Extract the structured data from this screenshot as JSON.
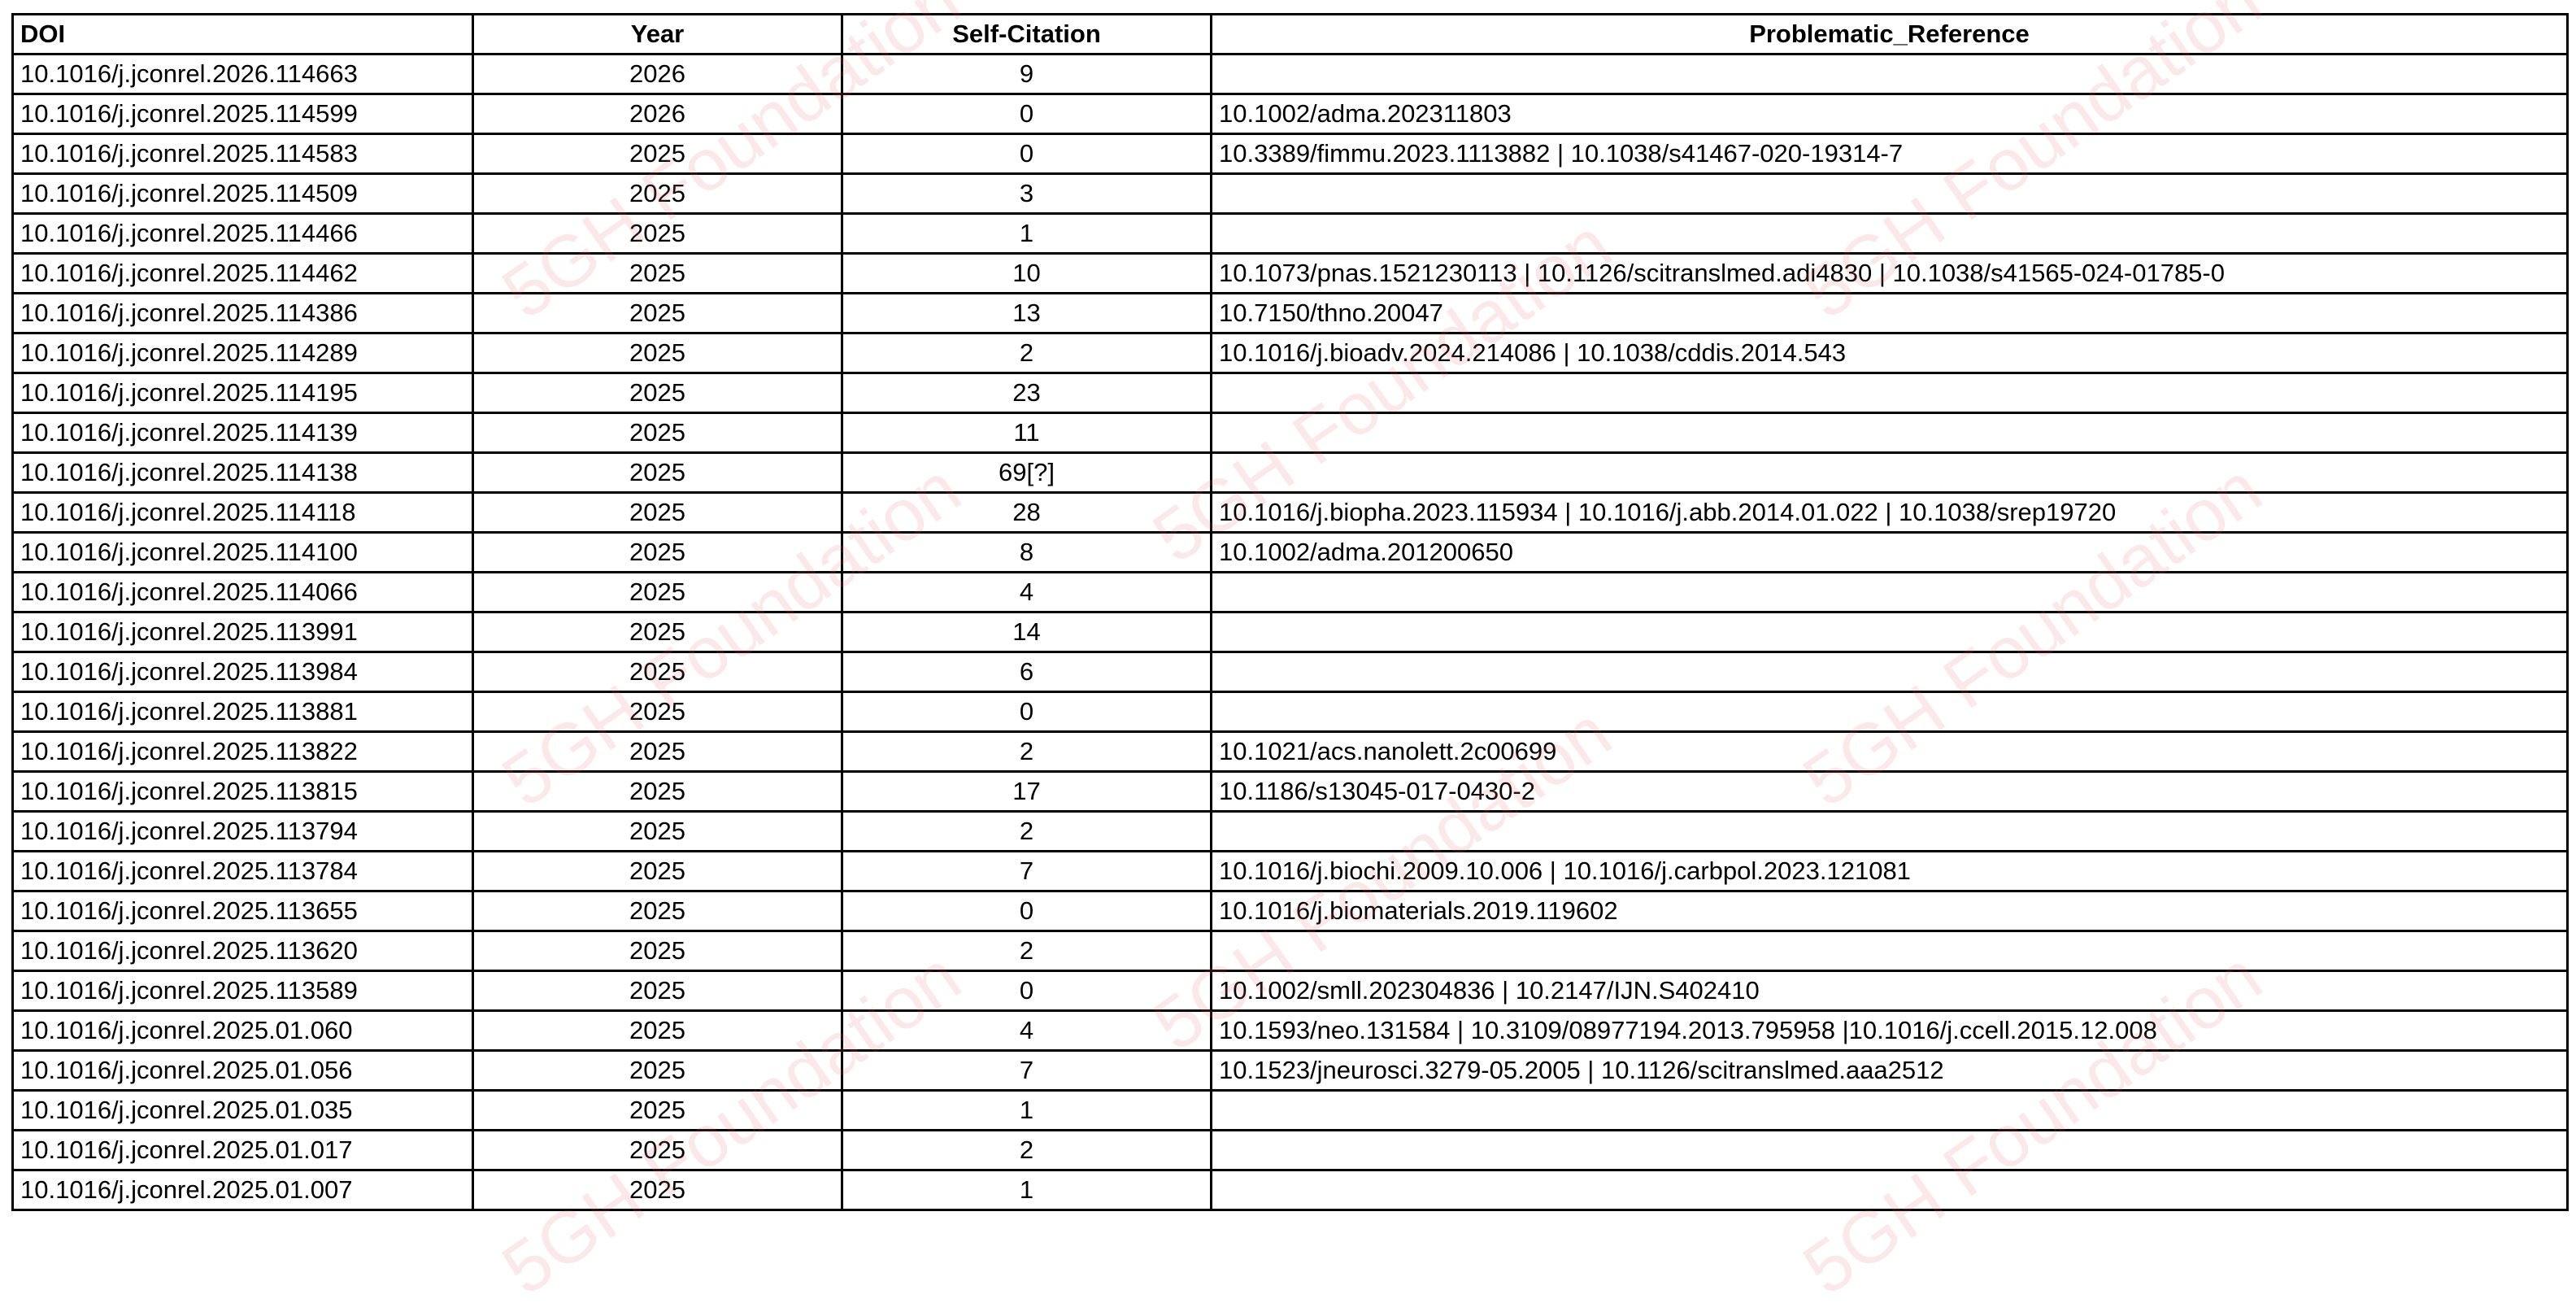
{
  "headers": {
    "doi": "DOI",
    "year": "Year",
    "self_citation": "Self-Citation",
    "problematic_reference": "Problematic_Reference"
  },
  "watermark": "5GH Foundation",
  "rows": [
    {
      "doi": "10.1016/j.jconrel.2026.114663",
      "year": "2026",
      "self_citation": "9",
      "problematic_reference": ""
    },
    {
      "doi": "10.1016/j.jconrel.2025.114599",
      "year": "2026",
      "self_citation": "0",
      "problematic_reference": "10.1002/adma.202311803"
    },
    {
      "doi": "10.1016/j.jconrel.2025.114583",
      "year": "2025",
      "self_citation": "0",
      "problematic_reference": "10.3389/fimmu.2023.1113882 | 10.1038/s41467-020-19314-7"
    },
    {
      "doi": "10.1016/j.jconrel.2025.114509",
      "year": "2025",
      "self_citation": "3",
      "problematic_reference": ""
    },
    {
      "doi": "10.1016/j.jconrel.2025.114466",
      "year": "2025",
      "self_citation": "1",
      "problematic_reference": ""
    },
    {
      "doi": "10.1016/j.jconrel.2025.114462",
      "year": "2025",
      "self_citation": "10",
      "problematic_reference": "10.1073/pnas.1521230113 | 10.1126/scitranslmed.adi4830 | 10.1038/s41565-024-01785-0"
    },
    {
      "doi": "10.1016/j.jconrel.2025.114386",
      "year": "2025",
      "self_citation": "13",
      "problematic_reference": "10.7150/thno.20047"
    },
    {
      "doi": "10.1016/j.jconrel.2025.114289",
      "year": "2025",
      "self_citation": "2",
      "problematic_reference": "10.1016/j.bioadv.2024.214086 | 10.1038/cddis.2014.543"
    },
    {
      "doi": "10.1016/j.jconrel.2025.114195",
      "year": "2025",
      "self_citation": "23",
      "problematic_reference": ""
    },
    {
      "doi": "10.1016/j.jconrel.2025.114139",
      "year": "2025",
      "self_citation": "11",
      "problematic_reference": ""
    },
    {
      "doi": "10.1016/j.jconrel.2025.114138",
      "year": "2025",
      "self_citation": "69[?]",
      "problematic_reference": ""
    },
    {
      "doi": "10.1016/j.jconrel.2025.114118",
      "year": "2025",
      "self_citation": "28",
      "problematic_reference": "10.1016/j.biopha.2023.115934 | 10.1016/j.abb.2014.01.022 | 10.1038/srep19720"
    },
    {
      "doi": "10.1016/j.jconrel.2025.114100",
      "year": "2025",
      "self_citation": "8",
      "problematic_reference": "10.1002/adma.201200650"
    },
    {
      "doi": "10.1016/j.jconrel.2025.114066",
      "year": "2025",
      "self_citation": "4",
      "problematic_reference": ""
    },
    {
      "doi": "10.1016/j.jconrel.2025.113991",
      "year": "2025",
      "self_citation": "14",
      "problematic_reference": ""
    },
    {
      "doi": "10.1016/j.jconrel.2025.113984",
      "year": "2025",
      "self_citation": "6",
      "problematic_reference": ""
    },
    {
      "doi": "10.1016/j.jconrel.2025.113881",
      "year": "2025",
      "self_citation": "0",
      "problematic_reference": ""
    },
    {
      "doi": "10.1016/j.jconrel.2025.113822",
      "year": "2025",
      "self_citation": "2",
      "problematic_reference": "10.1021/acs.nanolett.2c00699"
    },
    {
      "doi": "10.1016/j.jconrel.2025.113815",
      "year": "2025",
      "self_citation": "17",
      "problematic_reference": "10.1186/s13045-017-0430-2"
    },
    {
      "doi": "10.1016/j.jconrel.2025.113794",
      "year": "2025",
      "self_citation": "2",
      "problematic_reference": ""
    },
    {
      "doi": "10.1016/j.jconrel.2025.113784",
      "year": "2025",
      "self_citation": "7",
      "problematic_reference": "10.1016/j.biochi.2009.10.006 | 10.1016/j.carbpol.2023.121081"
    },
    {
      "doi": "10.1016/j.jconrel.2025.113655",
      "year": "2025",
      "self_citation": "0",
      "problematic_reference": "10.1016/j.biomaterials.2019.119602"
    },
    {
      "doi": "10.1016/j.jconrel.2025.113620",
      "year": "2025",
      "self_citation": "2",
      "problematic_reference": ""
    },
    {
      "doi": "10.1016/j.jconrel.2025.113589",
      "year": "2025",
      "self_citation": "0",
      "problematic_reference": "10.1002/smll.202304836 | 10.2147/IJN.S402410"
    },
    {
      "doi": "10.1016/j.jconrel.2025.01.060",
      "year": "2025",
      "self_citation": "4",
      "problematic_reference": "10.1593/neo.131584 | 10.3109/08977194.2013.795958 |10.1016/j.ccell.2015.12.008"
    },
    {
      "doi": "10.1016/j.jconrel.2025.01.056",
      "year": "2025",
      "self_citation": "7",
      "problematic_reference": "10.1523/jneurosci.3279-05.2005 | 10.1126/scitranslmed.aaa2512"
    },
    {
      "doi": "10.1016/j.jconrel.2025.01.035",
      "year": "2025",
      "self_citation": "1",
      "problematic_reference": ""
    },
    {
      "doi": "10.1016/j.jconrel.2025.01.017",
      "year": "2025",
      "self_citation": "2",
      "problematic_reference": ""
    },
    {
      "doi": "10.1016/j.jconrel.2025.01.007",
      "year": "2025",
      "self_citation": "1",
      "problematic_reference": ""
    }
  ]
}
